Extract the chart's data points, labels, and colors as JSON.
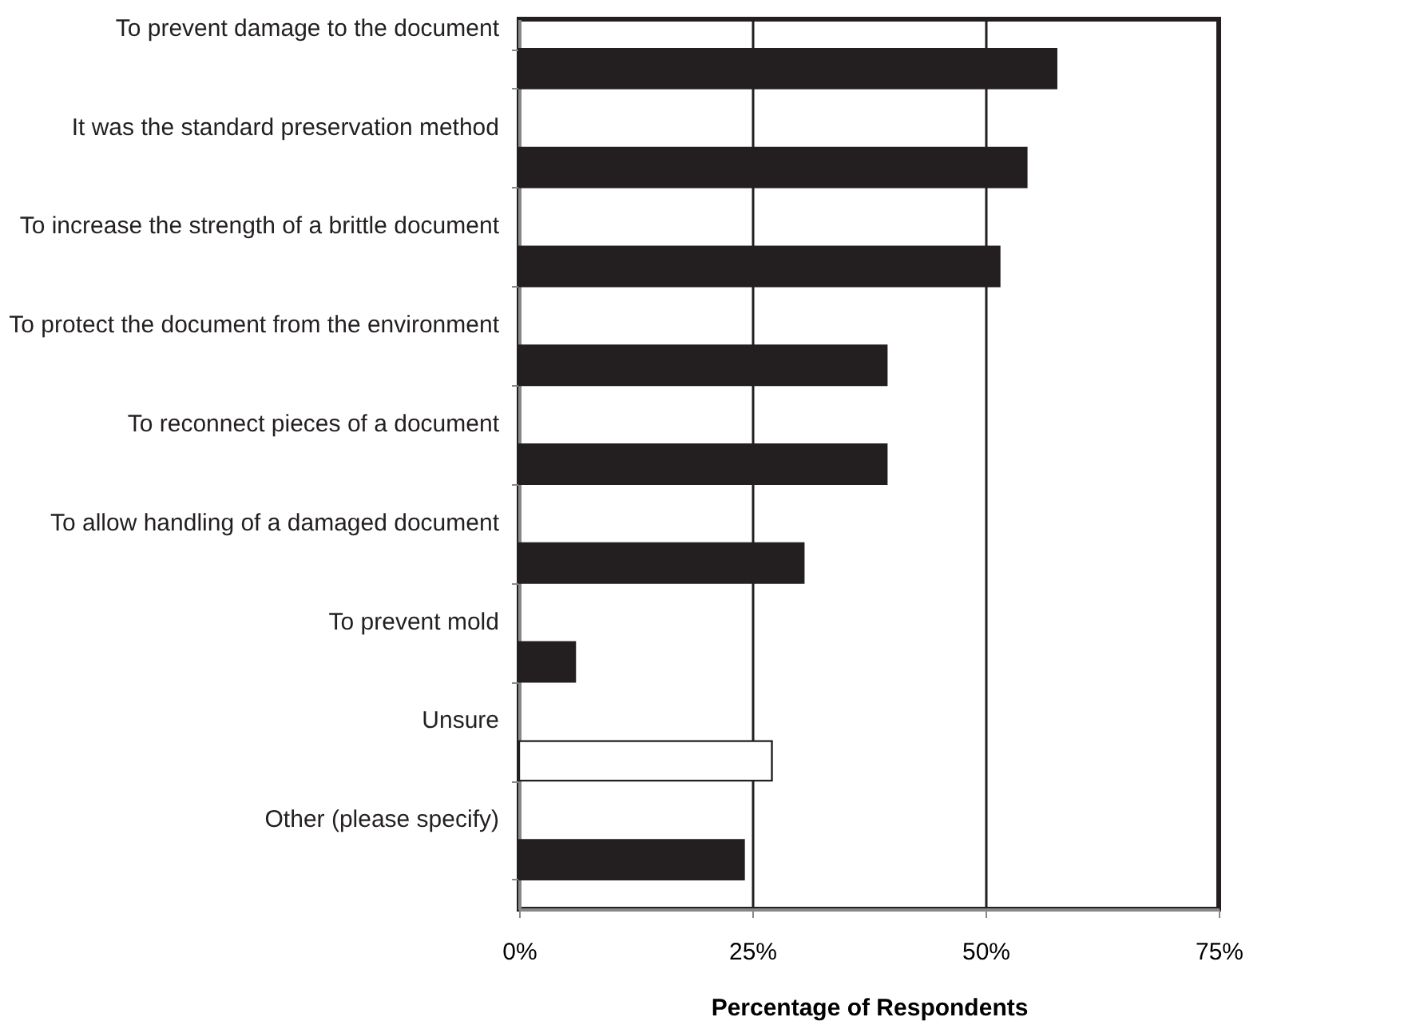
{
  "chart_data": {
    "type": "bar",
    "orientation": "horizontal",
    "xlabel": "Percentage of Respondents",
    "categories": [
      "To prevent damage to the document",
      "It was the standard preservation method",
      "To increase the strength of a brittle document",
      "To protect the document from the environment",
      "To reconnect pieces of a document",
      "To allow handling of a damaged document",
      "To prevent mold",
      "Unsure",
      "Other (please specify)"
    ],
    "values": [
      57.6,
      54.4,
      51.5,
      39.4,
      39.4,
      30.5,
      6.0,
      27.1,
      24.1
    ],
    "colors": [
      "#231f20",
      "#231f20",
      "#231f20",
      "#231f20",
      "#231f20",
      "#231f20",
      "#231f20",
      "#ffffff",
      "#231f20"
    ],
    "xlim": [
      0,
      75
    ],
    "xticks": [
      {
        "value": 0,
        "label": "0%"
      },
      {
        "value": 25,
        "label": "25%"
      },
      {
        "value": 50,
        "label": "50%"
      },
      {
        "value": 75,
        "label": "75%"
      }
    ],
    "grid": "x"
  }
}
